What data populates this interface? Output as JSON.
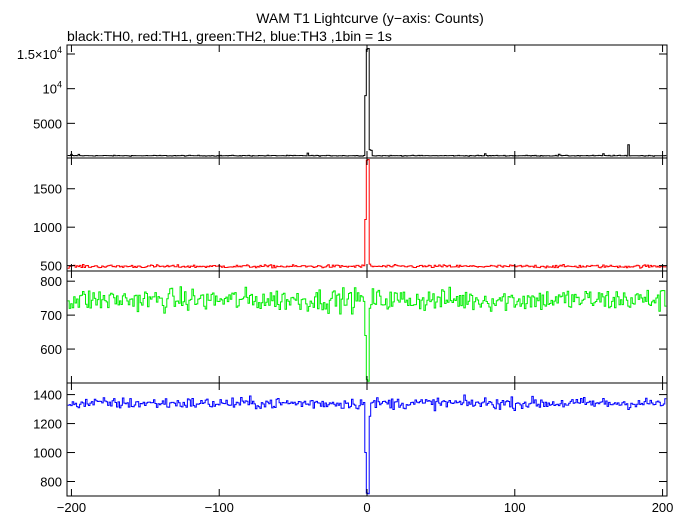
{
  "chart_data": {
    "type": "line",
    "title": "WAM T1 Lightcurve (y−axis: Counts)",
    "subtitle": "black:TH0, red:TH1, green:TH2, blue:TH3 ,1bin = 1s",
    "xlabel": "",
    "xlim": [
      -203,
      203
    ],
    "x_ticks": [
      -200,
      -100,
      0,
      100,
      200
    ],
    "x_tick_labels": [
      "−200",
      "−100",
      "0",
      "100",
      "200"
    ],
    "bin_seconds": 1,
    "panels": [
      {
        "name": "TH0",
        "color": "#000000",
        "ylim": [
          0,
          16300
        ],
        "yticks": [
          {
            "value": 5000,
            "label": "5000"
          },
          {
            "value": 10000,
            "base": "10",
            "exp": "4"
          },
          {
            "value": 15000,
            "base": "1.5×10",
            "exp": "4"
          }
        ],
        "baseline": 330,
        "noise": 40,
        "features": [
          {
            "x": -200,
            "y": 520
          },
          {
            "x": -195,
            "y": 520
          },
          {
            "x": -40,
            "y": 700
          },
          {
            "x": -1,
            "y": 9000
          },
          {
            "x": 0,
            "y": 15700
          },
          {
            "x": 1,
            "y": 15800
          },
          {
            "x": 2,
            "y": 1200
          },
          {
            "x": 3,
            "y": 1100
          },
          {
            "x": 80,
            "y": 600
          },
          {
            "x": 130,
            "y": 550
          },
          {
            "x": 160,
            "y": 600
          },
          {
            "x": 177,
            "y": 1900
          }
        ]
      },
      {
        "name": "TH1",
        "color": "#ff0000",
        "ylim": [
          430,
          1900
        ],
        "yticks": [
          {
            "value": 500,
            "label": "500"
          },
          {
            "value": 1000,
            "label": "1000"
          },
          {
            "value": 1500,
            "label": "1500"
          }
        ],
        "baseline": 490,
        "noise": 14,
        "features": [
          {
            "x": -1,
            "y": 1100
          },
          {
            "x": 0,
            "y": 1870
          },
          {
            "x": 1,
            "y": 1880
          },
          {
            "x": 2,
            "y": 520
          }
        ]
      },
      {
        "name": "TH2",
        "color": "#00ee00",
        "ylim": [
          500,
          830
        ],
        "yticks": [
          {
            "value": 600,
            "label": "600"
          },
          {
            "value": 700,
            "label": "700"
          },
          {
            "value": 800,
            "label": "800"
          }
        ],
        "baseline": 745,
        "noise": 24,
        "features": [
          {
            "x": -1,
            "y": 640
          },
          {
            "x": 0,
            "y": 510
          },
          {
            "x": 1,
            "y": 505
          },
          {
            "x": 2,
            "y": 720
          }
        ]
      },
      {
        "name": "TH3",
        "color": "#0000ff",
        "ylim": [
          700,
          1480
        ],
        "yticks": [
          {
            "value": 800,
            "label": "800"
          },
          {
            "value": 1000,
            "label": "1000"
          },
          {
            "value": 1200,
            "label": "1200"
          },
          {
            "value": 1400,
            "label": "1400"
          }
        ],
        "baseline": 1340,
        "noise": 28,
        "features": [
          {
            "x": -1,
            "y": 1000
          },
          {
            "x": 0,
            "y": 720
          },
          {
            "x": 1,
            "y": 715
          },
          {
            "x": 2,
            "y": 1250
          }
        ]
      }
    ]
  }
}
